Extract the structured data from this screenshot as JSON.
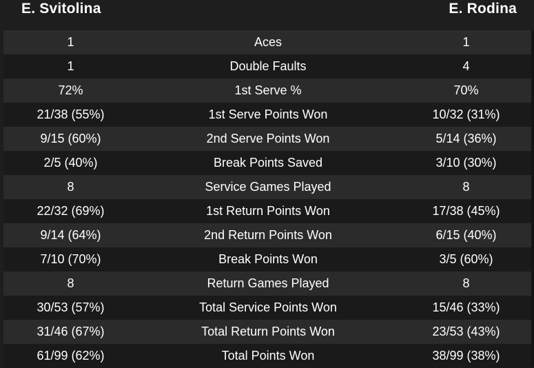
{
  "header": {
    "player_left": "E. Svitolina",
    "player_right": "E. Rodina"
  },
  "stats": [
    {
      "left": "1",
      "label": "Aces",
      "right": "1"
    },
    {
      "left": "1",
      "label": "Double Faults",
      "right": "4"
    },
    {
      "left": "72%",
      "label": "1st Serve %",
      "right": "70%"
    },
    {
      "left": "21/38 (55%)",
      "label": "1st Serve Points Won",
      "right": "10/32 (31%)"
    },
    {
      "left": "9/15 (60%)",
      "label": "2nd Serve Points Won",
      "right": "5/14 (36%)"
    },
    {
      "left": "2/5 (40%)",
      "label": "Break Points Saved",
      "right": "3/10 (30%)"
    },
    {
      "left": "8",
      "label": "Service Games Played",
      "right": "8"
    },
    {
      "left": "22/32 (69%)",
      "label": "1st Return Points Won",
      "right": "17/38 (45%)"
    },
    {
      "left": "9/14 (64%)",
      "label": "2nd Return Points Won",
      "right": "6/15 (40%)"
    },
    {
      "left": "7/10 (70%)",
      "label": "Break Points Won",
      "right": "3/5 (60%)"
    },
    {
      "left": "8",
      "label": "Return Games Played",
      "right": "8"
    },
    {
      "left": "30/53 (57%)",
      "label": "Total Service Points Won",
      "right": "15/46 (33%)"
    },
    {
      "left": "31/46 (67%)",
      "label": "Total Return Points Won",
      "right": "23/53 (43%)"
    },
    {
      "left": "61/99 (62%)",
      "label": "Total Points Won",
      "right": "38/99 (38%)"
    }
  ]
}
